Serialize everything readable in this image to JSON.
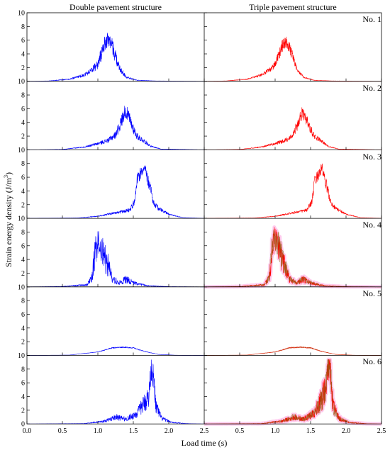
{
  "chart_data": {
    "type": "line",
    "columns": [
      "Double pavement structure",
      "Triple pavement structure"
    ],
    "rows": [
      "No. 1",
      "No. 2",
      "No. 3",
      "No. 4",
      "No. 5",
      "No. 6"
    ],
    "xlabel": "Load time (s)",
    "ylabel": "Strain energy density (J/m",
    "ylabel_sup": "3",
    "ylabel_end": ")",
    "xlim": [
      0.0,
      2.5
    ],
    "ylim": [
      0,
      10
    ],
    "xticks": [
      "0.0",
      "0.5",
      "1.0",
      "1.5",
      "2.0",
      "2.5"
    ],
    "yticks": [
      "0",
      "2",
      "4",
      "6",
      "8",
      "10"
    ],
    "colors": {
      "double": "#0000ff",
      "triple": "#ff0000",
      "triple_overlay": "#8b6914",
      "glow": "#ff66cc"
    },
    "panels": [
      {
        "row": "No. 1",
        "double": {
          "shape": [
            [
              0.0,
              0
            ],
            [
              0.3,
              0.05
            ],
            [
              0.6,
              0.3
            ],
            [
              0.8,
              0.9
            ],
            [
              0.9,
              1.5
            ],
            [
              1.0,
              2.5
            ],
            [
              1.05,
              4.0
            ],
            [
              1.1,
              5.6
            ],
            [
              1.15,
              6.2
            ],
            [
              1.2,
              5.3
            ],
            [
              1.25,
              3.6
            ],
            [
              1.3,
              2.0
            ],
            [
              1.4,
              0.6
            ],
            [
              1.55,
              0.15
            ],
            [
              1.8,
              0.05
            ],
            [
              2.5,
              0
            ]
          ],
          "noise": 1.1
        },
        "triple": {
          "shape": [
            [
              0.0,
              0
            ],
            [
              0.3,
              0.05
            ],
            [
              0.6,
              0.3
            ],
            [
              0.8,
              0.9
            ],
            [
              0.9,
              1.5
            ],
            [
              1.0,
              2.4
            ],
            [
              1.05,
              3.8
            ],
            [
              1.1,
              5.2
            ],
            [
              1.15,
              5.8
            ],
            [
              1.2,
              5.0
            ],
            [
              1.25,
              3.4
            ],
            [
              1.3,
              1.9
            ],
            [
              1.4,
              0.6
            ],
            [
              1.55,
              0.15
            ],
            [
              1.8,
              0.05
            ],
            [
              2.5,
              0
            ]
          ],
          "noise": 0.9
        }
      },
      {
        "row": "No. 2",
        "double": {
          "shape": [
            [
              0.0,
              0
            ],
            [
              0.5,
              0.05
            ],
            [
              0.8,
              0.4
            ],
            [
              1.0,
              0.9
            ],
            [
              1.15,
              1.4
            ],
            [
              1.25,
              2.2
            ],
            [
              1.32,
              3.8
            ],
            [
              1.38,
              5.6
            ],
            [
              1.42,
              5.2
            ],
            [
              1.48,
              3.6
            ],
            [
              1.55,
              2.0
            ],
            [
              1.65,
              1.3
            ],
            [
              1.75,
              0.5
            ],
            [
              1.9,
              0.1
            ],
            [
              2.5,
              0
            ]
          ],
          "noise": 1.0
        },
        "triple": {
          "shape": [
            [
              0.0,
              0
            ],
            [
              0.5,
              0.05
            ],
            [
              0.8,
              0.4
            ],
            [
              1.0,
              0.9
            ],
            [
              1.15,
              1.4
            ],
            [
              1.25,
              2.2
            ],
            [
              1.32,
              3.8
            ],
            [
              1.38,
              5.4
            ],
            [
              1.42,
              5.0
            ],
            [
              1.48,
              3.5
            ],
            [
              1.55,
              2.0
            ],
            [
              1.65,
              1.3
            ],
            [
              1.75,
              0.5
            ],
            [
              1.9,
              0.1
            ],
            [
              2.5,
              0
            ]
          ],
          "noise": 0.9
        }
      },
      {
        "row": "No. 3",
        "double": {
          "shape": [
            [
              0.0,
              0
            ],
            [
              0.7,
              0.05
            ],
            [
              1.0,
              0.3
            ],
            [
              1.3,
              0.9
            ],
            [
              1.45,
              1.2
            ],
            [
              1.52,
              2.5
            ],
            [
              1.56,
              6.0
            ],
            [
              1.62,
              6.8
            ],
            [
              1.66,
              7.8
            ],
            [
              1.7,
              5.8
            ],
            [
              1.74,
              4.5
            ],
            [
              1.78,
              2.4
            ],
            [
              1.85,
              1.5
            ],
            [
              2.0,
              0.6
            ],
            [
              2.2,
              0.1
            ],
            [
              2.5,
              0
            ]
          ],
          "noise": 0.9
        },
        "triple": {
          "shape": [
            [
              0.0,
              0
            ],
            [
              0.7,
              0.05
            ],
            [
              1.0,
              0.3
            ],
            [
              1.3,
              0.9
            ],
            [
              1.45,
              1.2
            ],
            [
              1.52,
              2.5
            ],
            [
              1.56,
              5.6
            ],
            [
              1.62,
              6.5
            ],
            [
              1.66,
              7.4
            ],
            [
              1.7,
              5.6
            ],
            [
              1.74,
              4.3
            ],
            [
              1.78,
              2.4
            ],
            [
              1.85,
              1.5
            ],
            [
              2.0,
              0.6
            ],
            [
              2.2,
              0.1
            ],
            [
              2.5,
              0
            ]
          ],
          "noise": 0.8
        }
      },
      {
        "row": "No. 4",
        "double": {
          "shape": [
            [
              0.0,
              0
            ],
            [
              0.5,
              0.05
            ],
            [
              0.85,
              0.3
            ],
            [
              0.92,
              1.5
            ],
            [
              0.96,
              5.0
            ],
            [
              1.0,
              6.2
            ],
            [
              1.05,
              5.5
            ],
            [
              1.1,
              4.0
            ],
            [
              1.15,
              3.2
            ],
            [
              1.2,
              1.2
            ],
            [
              1.3,
              0.6
            ],
            [
              1.4,
              1.1
            ],
            [
              1.5,
              0.6
            ],
            [
              1.7,
              0.15
            ],
            [
              2.0,
              0.03
            ],
            [
              2.5,
              0
            ]
          ],
          "noise": 2.2
        },
        "triple": {
          "shape": [
            [
              0.0,
              0
            ],
            [
              0.5,
              0.05
            ],
            [
              0.85,
              0.3
            ],
            [
              0.92,
              1.5
            ],
            [
              0.96,
              6.0
            ],
            [
              1.0,
              7.2
            ],
            [
              1.05,
              6.0
            ],
            [
              1.1,
              4.0
            ],
            [
              1.15,
              3.0
            ],
            [
              1.2,
              1.2
            ],
            [
              1.3,
              0.6
            ],
            [
              1.4,
              1.1
            ],
            [
              1.5,
              0.6
            ],
            [
              1.7,
              0.15
            ],
            [
              2.0,
              0.03
            ],
            [
              2.5,
              0
            ]
          ],
          "noise": 2.0
        }
      },
      {
        "row": "No. 5",
        "double": {
          "shape": [
            [
              0.0,
              0
            ],
            [
              0.6,
              0.05
            ],
            [
              1.0,
              0.5
            ],
            [
              1.2,
              1.1
            ],
            [
              1.35,
              1.2
            ],
            [
              1.5,
              1.1
            ],
            [
              1.65,
              0.6
            ],
            [
              1.85,
              0.15
            ],
            [
              2.1,
              0.03
            ],
            [
              2.5,
              0
            ]
          ],
          "noise": 0.3
        },
        "triple": {
          "shape": [
            [
              0.0,
              0
            ],
            [
              0.6,
              0.05
            ],
            [
              1.0,
              0.5
            ],
            [
              1.2,
              1.1
            ],
            [
              1.35,
              1.2
            ],
            [
              1.5,
              1.1
            ],
            [
              1.65,
              0.6
            ],
            [
              1.85,
              0.15
            ],
            [
              2.1,
              0.03
            ],
            [
              2.5,
              0
            ]
          ],
          "noise": 0.3
        }
      },
      {
        "row": "No. 6",
        "double": {
          "shape": [
            [
              0.0,
              0
            ],
            [
              0.8,
              0.05
            ],
            [
              1.1,
              0.4
            ],
            [
              1.25,
              1.0
            ],
            [
              1.4,
              0.7
            ],
            [
              1.55,
              1.5
            ],
            [
              1.65,
              3.0
            ],
            [
              1.72,
              4.0
            ],
            [
              1.75,
              8.2
            ],
            [
              1.78,
              7.0
            ],
            [
              1.82,
              2.5
            ],
            [
              1.9,
              0.8
            ],
            [
              2.05,
              0.2
            ],
            [
              2.3,
              0.03
            ],
            [
              2.5,
              0
            ]
          ],
          "noise": 1.8
        },
        "triple": {
          "shape": [
            [
              0.0,
              0
            ],
            [
              0.8,
              0.05
            ],
            [
              1.1,
              0.4
            ],
            [
              1.25,
              1.0
            ],
            [
              1.4,
              0.7
            ],
            [
              1.55,
              1.5
            ],
            [
              1.65,
              3.5
            ],
            [
              1.72,
              5.5
            ],
            [
              1.75,
              8.6
            ],
            [
              1.78,
              7.4
            ],
            [
              1.82,
              2.5
            ],
            [
              1.9,
              0.8
            ],
            [
              2.05,
              0.2
            ],
            [
              2.3,
              0.03
            ],
            [
              2.5,
              0
            ]
          ],
          "noise": 2.0
        }
      }
    ]
  }
}
